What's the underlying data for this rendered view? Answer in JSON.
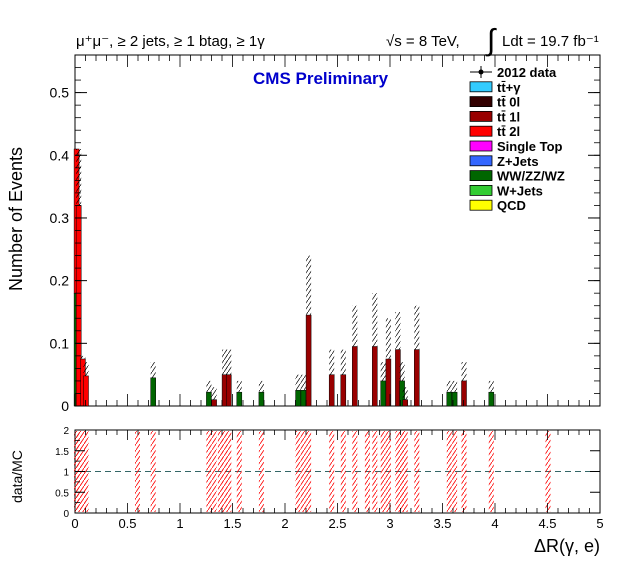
{
  "header": {
    "selection": "μ⁺μ⁻, ≥ 2 jets, ≥ 1 btag, ≥ 1γ",
    "energy": "√s = 8 TeV,",
    "lumi": "Ldt = 19.7 fb⁻¹",
    "integral_symbol": "∫"
  },
  "cms_label": "CMS Preliminary",
  "colors": {
    "ttgamma": "#33ccff",
    "tt_0l": "#330000",
    "tt_1l": "#990000",
    "tt_2l": "#ff0000",
    "single_top": "#ff00ff",
    "zjets": "#3366ff",
    "diboson": "#006600",
    "wjets": "#33cc33",
    "qcd": "#ffff00",
    "ratio_line": "#336666",
    "cms_label": "#0000cc"
  },
  "chart_data": [
    {
      "type": "bar",
      "subtype": "stacked histogram",
      "ylabel": "Number of Events",
      "xlim": [
        0,
        5
      ],
      "ylim": [
        0,
        0.56
      ],
      "x_ticks": [
        0,
        0.5,
        1,
        1.5,
        2,
        2.5,
        3,
        3.5,
        4,
        4.5,
        5
      ],
      "y_ticks": [
        0,
        0.1,
        0.2,
        0.3,
        0.4,
        0.5
      ],
      "y_tick_labels": [
        "0",
        "0.1",
        "0.2",
        "0.3",
        "0.4",
        "0.5"
      ],
      "legend_position": "top-right",
      "legend": [
        {
          "label": "2012 data",
          "marker": "data"
        },
        {
          "label": "tt̄+γ",
          "color_key": "ttgamma"
        },
        {
          "label": "tt̄ 0l",
          "color_key": "tt_0l"
        },
        {
          "label": "tt̄ 1l",
          "color_key": "tt_1l"
        },
        {
          "label": "tt̄ 2l",
          "color_key": "tt_2l"
        },
        {
          "label": "Single Top",
          "color_key": "single_top"
        },
        {
          "label": "Z+Jets",
          "color_key": "zjets"
        },
        {
          "label": "WW/ZZ/WZ",
          "color_key": "diboson"
        },
        {
          "label": "W+Jets",
          "color_key": "wjets"
        },
        {
          "label": "QCD",
          "color_key": "qcd"
        }
      ],
      "bins": [
        {
          "x": 0.015,
          "diboson": 0.18,
          "tt_2l": 0.23,
          "unc_top": 0.41
        },
        {
          "x": 0.035,
          "tt_2l": 0.32,
          "unc_top": 0.41
        },
        {
          "x": 0.075,
          "tt_2l": 0.075,
          "unc_top": 0.08
        },
        {
          "x": 0.105,
          "tt_2l": 0.048,
          "unc_top": 0.07
        },
        {
          "x": 0.745,
          "diboson": 0.045,
          "unc_top": 0.07
        },
        {
          "x": 1.275,
          "diboson": 0.022,
          "unc_top": 0.04
        },
        {
          "x": 1.325,
          "tt_1l": 0.01,
          "unc_top": 0.03
        },
        {
          "x": 1.425,
          "tt_1l": 0.05,
          "unc_top": 0.09
        },
        {
          "x": 1.465,
          "tt_1l": 0.05,
          "unc_top": 0.09
        },
        {
          "x": 1.565,
          "diboson": 0.022,
          "unc_top": 0.04
        },
        {
          "x": 1.775,
          "diboson": 0.022,
          "unc_top": 0.04
        },
        {
          "x": 2.125,
          "diboson": 0.025,
          "unc_top": 0.05
        },
        {
          "x": 2.175,
          "diboson": 0.025,
          "unc_top": 0.05
        },
        {
          "x": 2.225,
          "tt_1l": 0.145,
          "unc_top": 0.24
        },
        {
          "x": 2.445,
          "tt_1l": 0.05,
          "unc_top": 0.09
        },
        {
          "x": 2.555,
          "tt_1l": 0.05,
          "unc_top": 0.09
        },
        {
          "x": 2.665,
          "tt_1l": 0.095,
          "unc_top": 0.16
        },
        {
          "x": 2.855,
          "tt_1l": 0.095,
          "unc_top": 0.18
        },
        {
          "x": 2.935,
          "diboson": 0.04,
          "unc_top": 0.07
        },
        {
          "x": 2.985,
          "tt_1l": 0.075,
          "unc_top": 0.14
        },
        {
          "x": 3.075,
          "tt_1l": 0.09,
          "unc_top": 0.15
        },
        {
          "x": 3.115,
          "diboson": 0.04,
          "unc_top": 0.07
        },
        {
          "x": 3.145,
          "tt_1l": 0.01,
          "unc_top": 0.03
        },
        {
          "x": 3.255,
          "tt_1l": 0.09,
          "unc_top": 0.16
        },
        {
          "x": 3.565,
          "diboson": 0.022,
          "unc_top": 0.04
        },
        {
          "x": 3.615,
          "diboson": 0.022,
          "unc_top": 0.04
        },
        {
          "x": 3.705,
          "tt_1l": 0.04,
          "unc_top": 0.07
        },
        {
          "x": 3.965,
          "diboson": 0.022,
          "unc_top": 0.04
        }
      ]
    },
    {
      "type": "line",
      "subtype": "ratio panel",
      "ylabel": "data/MC",
      "xlabel": "ΔR(γ, e)",
      "xlim": [
        0,
        5
      ],
      "ylim": [
        0,
        2
      ],
      "x_ticks": [
        0,
        0.5,
        1,
        1.5,
        2,
        2.5,
        3,
        3.5,
        4,
        4.5,
        5
      ],
      "x_tick_labels": [
        "0",
        "0.5",
        "1",
        "1.5",
        "2",
        "2.5",
        "3",
        "3.5",
        "4",
        "4.5",
        "5"
      ],
      "y_ticks": [
        0,
        0.5,
        1,
        1.5,
        2
      ],
      "y_tick_labels": [
        "0",
        "0.5",
        "1",
        "1.5",
        "2"
      ],
      "reference_line": 1,
      "uncertainty_bins": [
        0.015,
        0.035,
        0.075,
        0.105,
        0.595,
        0.745,
        1.275,
        1.325,
        1.385,
        1.425,
        1.465,
        1.565,
        1.775,
        2.125,
        2.175,
        2.225,
        2.445,
        2.555,
        2.665,
        2.785,
        2.855,
        2.935,
        2.985,
        3.075,
        3.115,
        3.145,
        3.255,
        3.565,
        3.615,
        3.705,
        3.965,
        4.505
      ]
    }
  ]
}
